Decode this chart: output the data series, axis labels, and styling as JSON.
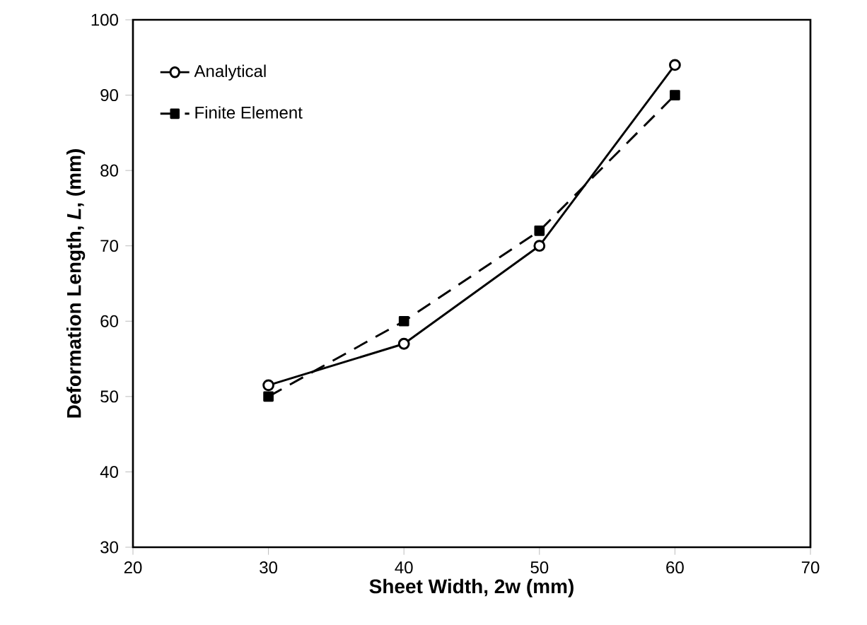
{
  "chart_data": {
    "type": "line",
    "xlabel": "Sheet Width, 2w (mm)",
    "ylabel": "Deformation Length, *L*,  (mm)",
    "x": [
      30,
      40,
      50,
      60
    ],
    "series": [
      {
        "name": "Analytical",
        "color": "#000000",
        "values": [
          51.5,
          57,
          70,
          94
        ],
        "marker": "circle",
        "line_style": "solid"
      },
      {
        "name": "Finite Element",
        "color": "#000000",
        "values": [
          50,
          60,
          72,
          90
        ],
        "marker": "square",
        "line_style": "dashed"
      }
    ],
    "xlim": [
      20,
      70
    ],
    "xticks": [
      20,
      30,
      40,
      50,
      60,
      70
    ],
    "ylim": [
      30,
      100
    ],
    "yticks": [
      30,
      40,
      50,
      60,
      70,
      80,
      90,
      100
    ],
    "legend": "top left",
    "grid": false
  }
}
